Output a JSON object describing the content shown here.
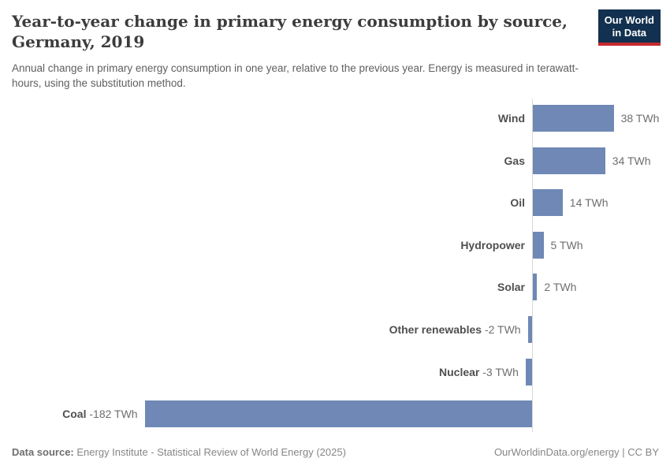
{
  "header": {
    "title_line1": "Year-to-year change in primary energy consumption by source,",
    "title_line2": "Germany, 2019",
    "subtitle": "Annual change in primary energy consumption in one year, relative to the previous year. Energy is measured in terawatt-hours, using the substitution method."
  },
  "logo": {
    "line1": "Our World",
    "line2": "in Data"
  },
  "colors": {
    "bar": "#6f88b5",
    "axis": "#d9d9d9",
    "logo_navy": "#12304f",
    "logo_red": "#c5292e"
  },
  "chart_data": {
    "type": "bar",
    "orientation": "horizontal",
    "unit": "TWh",
    "categories": [
      "Wind",
      "Gas",
      "Oil",
      "Hydropower",
      "Solar",
      "Other renewables",
      "Nuclear",
      "Coal"
    ],
    "values": [
      38,
      34,
      14,
      5,
      2,
      -2,
      -3,
      -182
    ],
    "value_labels": [
      "38 TWh",
      "34 TWh",
      "14 TWh",
      "5 TWh",
      "2 TWh",
      "-2 TWh",
      "-3 TWh",
      "-182 TWh"
    ],
    "xlim": [
      -182,
      38
    ],
    "grid": false,
    "legend": "none"
  },
  "footer": {
    "datasource_label": "Data source:",
    "datasource_value": "Energy Institute - Statistical Review of World Energy (2025)",
    "credit": "OurWorldinData.org/energy | CC BY"
  }
}
